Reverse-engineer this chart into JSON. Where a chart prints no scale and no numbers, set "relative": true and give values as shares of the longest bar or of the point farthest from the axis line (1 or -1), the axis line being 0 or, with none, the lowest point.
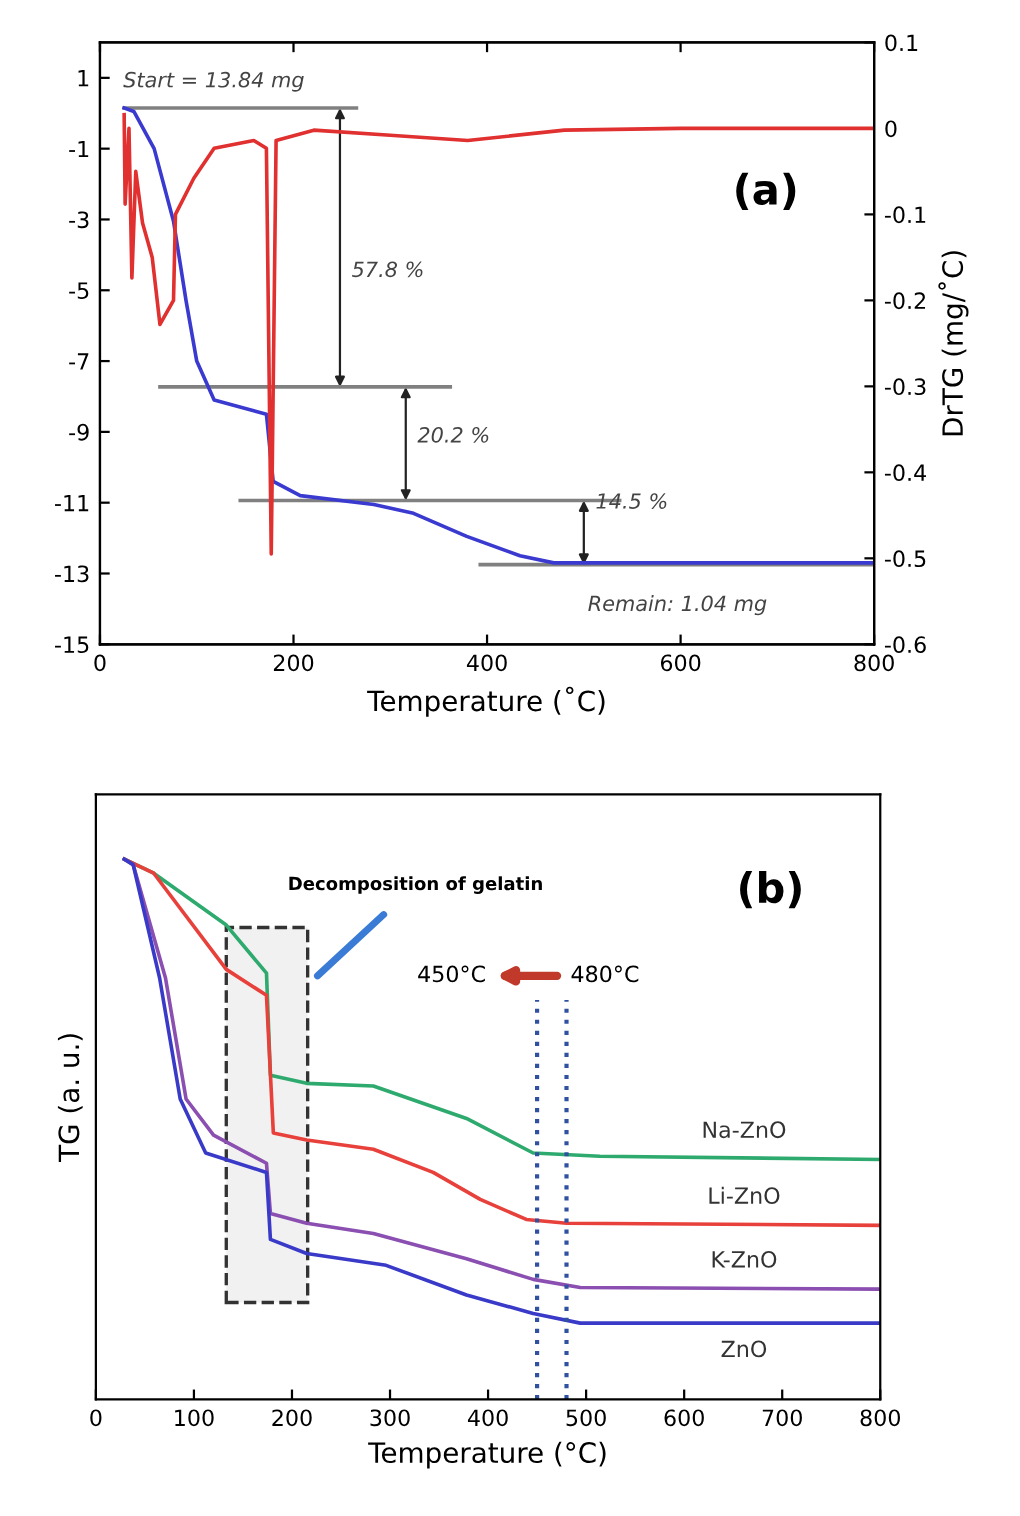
{
  "chart_data": [
    {
      "type": "line",
      "xlabel": "Temperature (˚C)",
      "y2label": "DrTG (mg/˚C)",
      "xlim": [
        0,
        800
      ],
      "xticks": [
        0,
        200,
        400,
        600,
        800
      ],
      "ylim": [
        -15,
        2
      ],
      "yticks": [
        -15,
        -13,
        -11,
        -9,
        -7,
        -5,
        -3,
        -1,
        1
      ],
      "y2lim": [
        -0.6,
        0.1
      ],
      "y2ticks": [
        -0.6,
        -0.5,
        -0.4,
        -0.3,
        -0.2,
        -0.1,
        0,
        0.1
      ],
      "series": [
        {
          "color": "#808080",
          "x": [
            25,
            265
          ],
          "values": [
            0.15,
            0.15
          ]
        },
        {
          "color": "#808080",
          "x": [
            62,
            362
          ],
          "values": [
            -7.73,
            -7.73
          ]
        },
        {
          "color": "#808080",
          "x": [
            145,
            537
          ],
          "values": [
            -10.94,
            -10.94
          ]
        },
        {
          "color": "#808080",
          "x": [
            393,
            800
          ],
          "values": [
            -12.75,
            -12.75
          ]
        },
        {
          "color": "#3a3ad0",
          "x": [
            25,
            35,
            56,
            76,
            89,
            100,
            118,
            172,
            179,
            207,
            283,
            324,
            379,
            434,
            469,
            600,
            800
          ],
          "values": [
            0.15,
            0.05,
            -1.0,
            -3.05,
            -5.3,
            -7.0,
            -8.1,
            -8.5,
            -10.4,
            -10.8,
            -11.05,
            -11.3,
            -11.95,
            -12.5,
            -12.7,
            -12.7,
            -12.7
          ]
        },
        {
          "color": "#e03030",
          "axis": "y2",
          "x": [
            25,
            26,
            30,
            33,
            37,
            44,
            54,
            62,
            76,
            78,
            97,
            118,
            159,
            172,
            177,
            182,
            221,
            300,
            380,
            480,
            600,
            800
          ],
          "values": [
            0.016,
            -0.088,
            0.0,
            -0.174,
            -0.05,
            -0.11,
            -0.15,
            -0.228,
            -0.2,
            -0.1,
            -0.058,
            -0.023,
            -0.014,
            -0.023,
            -0.495,
            -0.014,
            -0.002,
            -0.008,
            -0.014,
            -0.002,
            0.0,
            0.0
          ]
        }
      ],
      "annotations": [
        "(a)",
        "Start = 13.84 mg",
        "57.8 %",
        "20.2 %",
        "14.5 %",
        "Remain: 1.04 mg"
      ]
    },
    {
      "type": "line",
      "relative": true,
      "xlabel": "Temperature (°C)",
      "ylabel": "TG (a. u.)",
      "xlim": [
        0,
        800
      ],
      "xticks": [
        0,
        100,
        200,
        300,
        400,
        500,
        600,
        700,
        800
      ],
      "tick_labels": "x",
      "series": [
        {
          "name": "Na-ZnO",
          "color": "#2eaa6e",
          "x": [
            29,
            59,
            133,
            174,
            178,
            215,
            283,
            378,
            446,
            514,
            800
          ],
          "values": [
            1.0,
            0.974,
            0.878,
            0.789,
            0.6,
            0.585,
            0.58,
            0.52,
            0.456,
            0.45,
            0.444
          ]
        },
        {
          "name": "Li-ZnO",
          "color": "#e8403a",
          "x": [
            29,
            59,
            133,
            174,
            181,
            215,
            283,
            344,
            392,
            439,
            480,
            800
          ],
          "values": [
            1.0,
            0.974,
            0.796,
            0.748,
            0.493,
            0.48,
            0.463,
            0.42,
            0.37,
            0.333,
            0.326,
            0.322
          ]
        },
        {
          "name": "K-ZnO",
          "color": "#8a4fb0",
          "x": [
            29,
            38,
            71,
            92,
            120,
            174,
            178,
            215,
            283,
            378,
            446,
            494,
            800
          ],
          "values": [
            1.0,
            0.99,
            0.78,
            0.556,
            0.489,
            0.437,
            0.344,
            0.326,
            0.307,
            0.26,
            0.222,
            0.207,
            0.204
          ]
        },
        {
          "name": "ZnO",
          "color": "#3a3ac8",
          "x": [
            29,
            38,
            65,
            86,
            112,
            174,
            178,
            215,
            296,
            378,
            446,
            494,
            800
          ],
          "values": [
            1.0,
            0.99,
            0.78,
            0.556,
            0.456,
            0.42,
            0.296,
            0.27,
            0.248,
            0.193,
            0.159,
            0.141,
            0.141
          ]
        }
      ],
      "ref_lines": [
        {
          "axis": "x",
          "value": 450,
          "label": "450°C",
          "color": "#3050a0",
          "line_style": "dotted"
        },
        {
          "axis": "x",
          "value": 480,
          "label": "480°C",
          "color": "#3050a0",
          "line_style": "dotted"
        }
      ],
      "bands": [
        {
          "axis": "x",
          "from": 133,
          "to": 216,
          "label": "Decomposition of gelatin",
          "color": "#333333"
        }
      ],
      "annotations": [
        "(b)"
      ]
    }
  ]
}
